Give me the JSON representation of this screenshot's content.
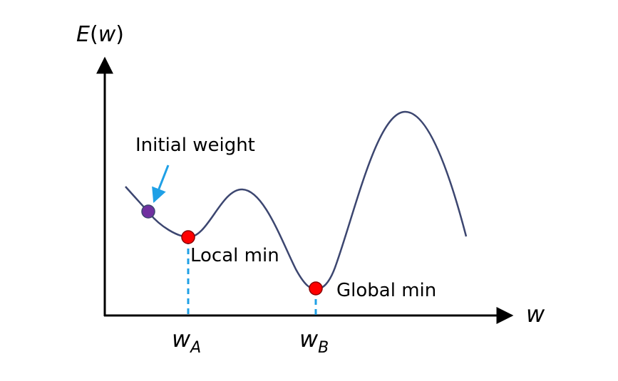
{
  "axes": {
    "y_label": {
      "main": "E",
      "open": "(",
      "var": "w",
      "close": ")"
    },
    "x_label": "w"
  },
  "annotations": {
    "initial_weight": "Initial weight",
    "local_min": "Local min",
    "global_min": "Global min"
  },
  "ticks": {
    "a": {
      "base": "w",
      "sub": "A"
    },
    "b": {
      "base": "w",
      "sub": "B"
    }
  },
  "colors": {
    "curve": "#3c4670",
    "axis": "#000000",
    "min_point": "#ff0000",
    "initial_point": "#7030a0",
    "guide": "#1fa0e6"
  }
}
